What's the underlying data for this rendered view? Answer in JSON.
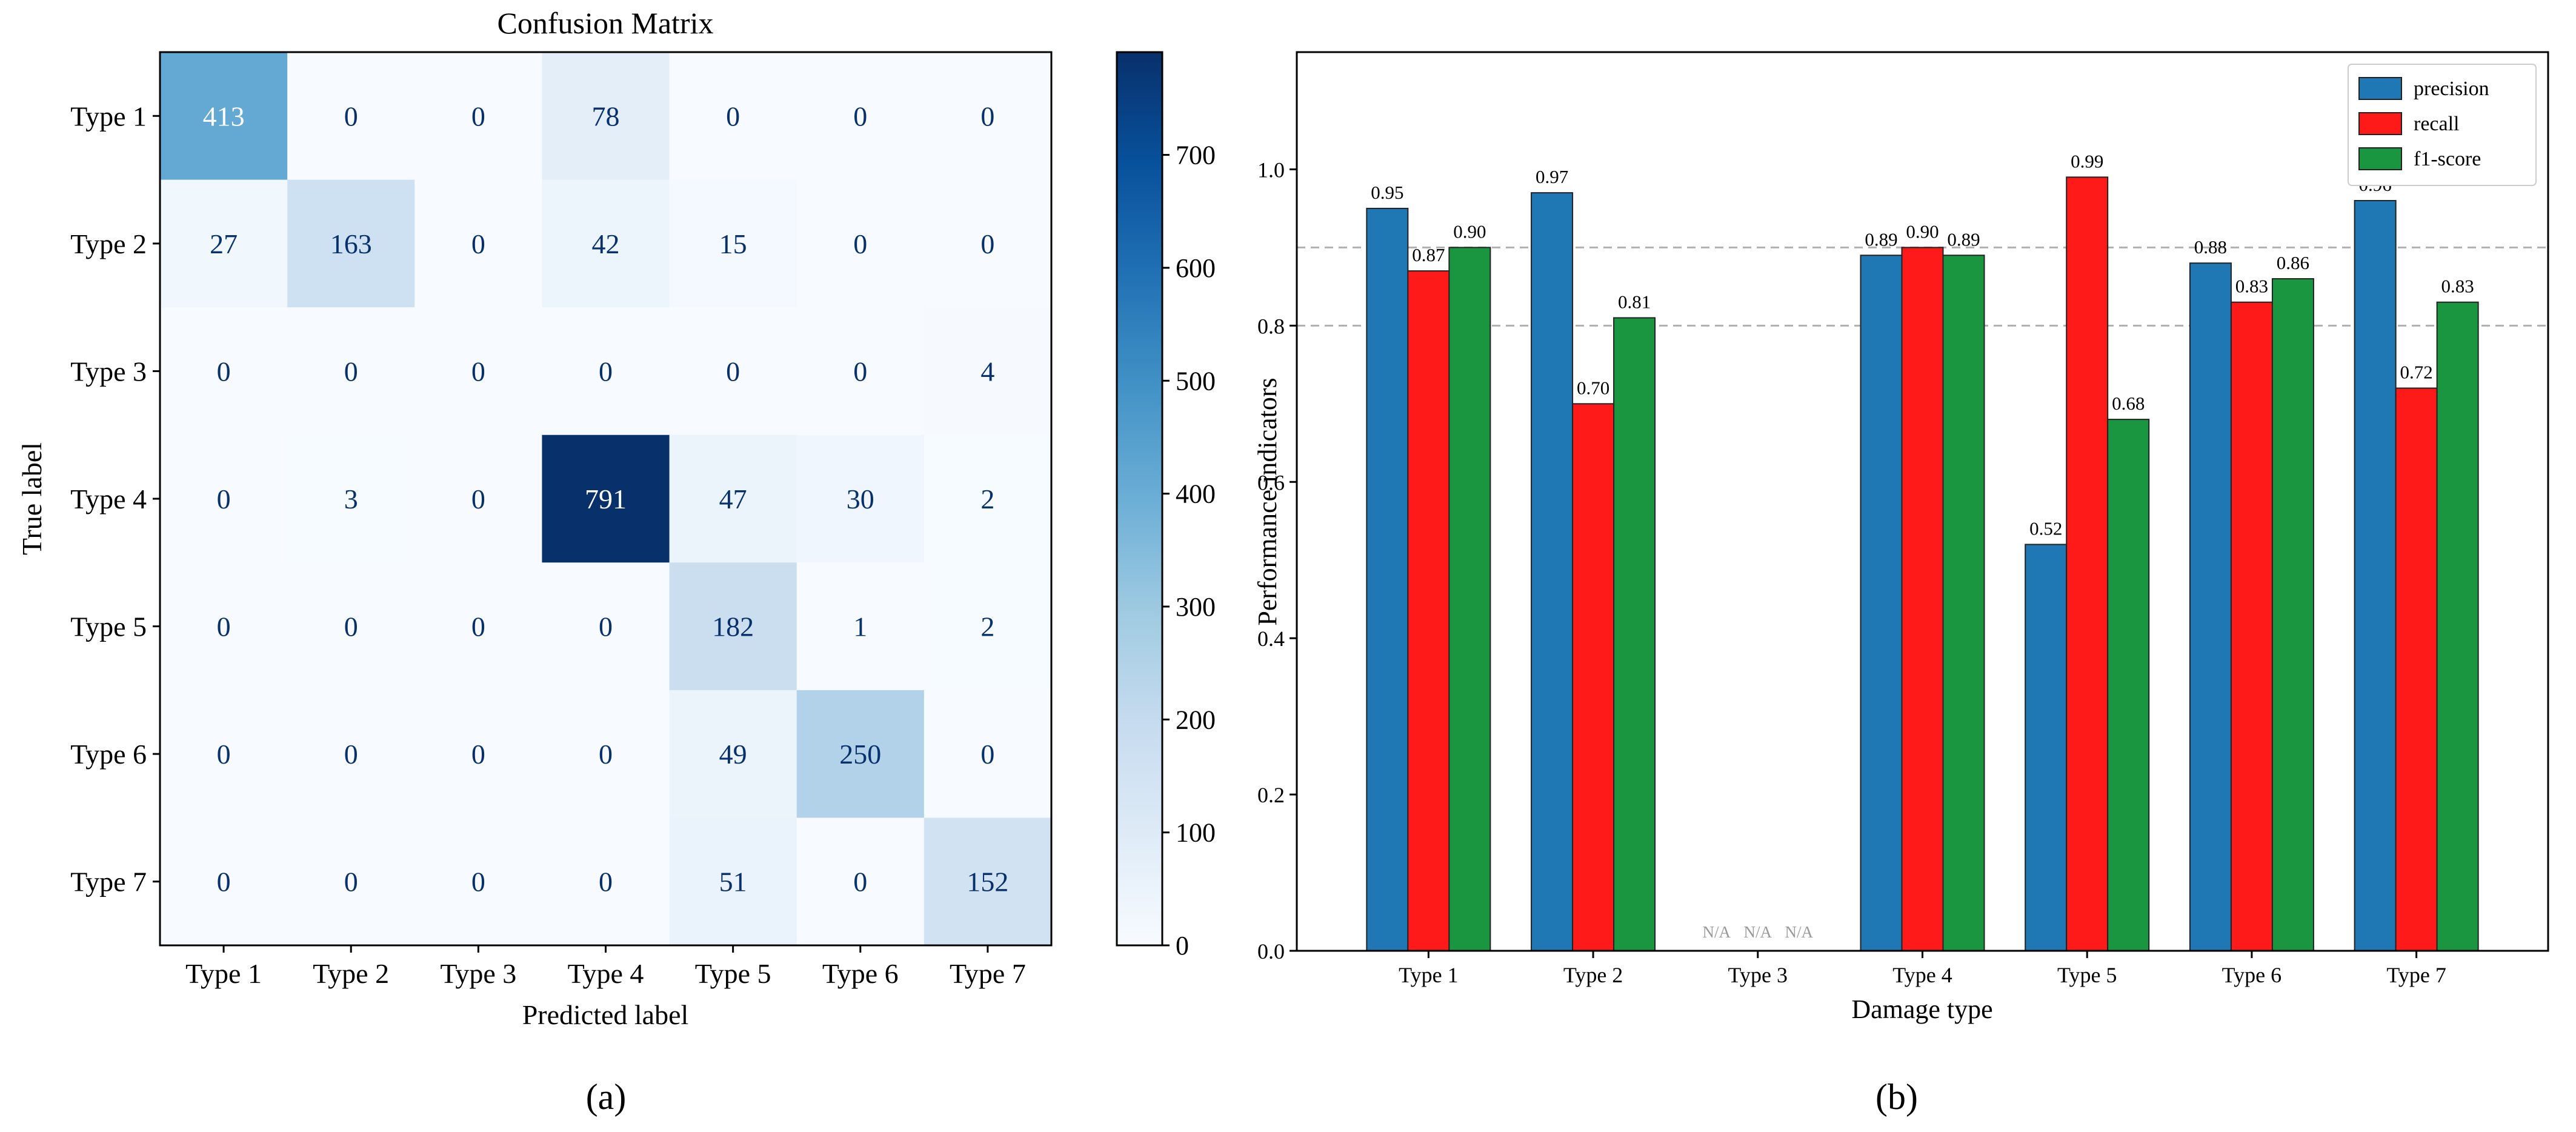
{
  "panel_labels": [
    "(a)",
    "(b)"
  ],
  "chart_data": [
    {
      "type": "heatmap",
      "title": "Confusion Matrix",
      "xlabel": "Predicted label",
      "ylabel": "True label",
      "x_categories": [
        "Type 1",
        "Type 2",
        "Type 3",
        "Type 4",
        "Type 5",
        "Type 6",
        "Type 7"
      ],
      "y_categories": [
        "Type 1",
        "Type 2",
        "Type 3",
        "Type 4",
        "Type 5",
        "Type 6",
        "Type 7"
      ],
      "values": [
        [
          413,
          0,
          0,
          78,
          0,
          0,
          0
        ],
        [
          27,
          163,
          0,
          42,
          15,
          0,
          0
        ],
        [
          0,
          0,
          0,
          0,
          0,
          0,
          4
        ],
        [
          0,
          3,
          0,
          791,
          47,
          30,
          2
        ],
        [
          0,
          0,
          0,
          0,
          182,
          1,
          2
        ],
        [
          0,
          0,
          0,
          0,
          49,
          250,
          0
        ],
        [
          0,
          0,
          0,
          0,
          51,
          0,
          152
        ]
      ],
      "colorbar": {
        "min": 0,
        "max": 791,
        "ticks": [
          0,
          100,
          200,
          300,
          400,
          500,
          600,
          700
        ],
        "colormap": "Blues"
      }
    },
    {
      "type": "bar",
      "title": "",
      "xlabel": "Damage type",
      "ylabel": "Performance indicators",
      "categories": [
        "Type 1",
        "Type 2",
        "Type 3",
        "Type 4",
        "Type 5",
        "Type 6",
        "Type 7"
      ],
      "ylim": [
        0,
        1.15
      ],
      "yticks": [
        "0.0",
        "0.2",
        "0.4",
        "0.6",
        "0.8",
        "1.0"
      ],
      "reference_lines": [
        0.8,
        0.9
      ],
      "legend_position": "top-right",
      "series": [
        {
          "name": "precision",
          "color": "#1f77b4",
          "values": [
            0.95,
            0.97,
            null,
            0.89,
            0.52,
            0.88,
            0.96
          ]
        },
        {
          "name": "recall",
          "color": "#ff1a1a",
          "values": [
            0.87,
            0.7,
            null,
            0.9,
            0.99,
            0.83,
            0.72
          ]
        },
        {
          "name": "f1-score",
          "color": "#1a9641",
          "values": [
            0.9,
            0.81,
            null,
            0.89,
            0.68,
            0.86,
            0.83
          ]
        }
      ],
      "data_labels": [
        [
          "0.95",
          "0.97",
          "N/A",
          "0.89",
          "0.52",
          "0.88",
          "0.96"
        ],
        [
          "0.87",
          "0.70",
          "N/A",
          "0.90",
          "0.99",
          "0.83",
          "0.72"
        ],
        [
          "0.90",
          "0.81",
          "N/A",
          "0.89",
          "0.68",
          "0.86",
          "0.83"
        ]
      ]
    }
  ]
}
